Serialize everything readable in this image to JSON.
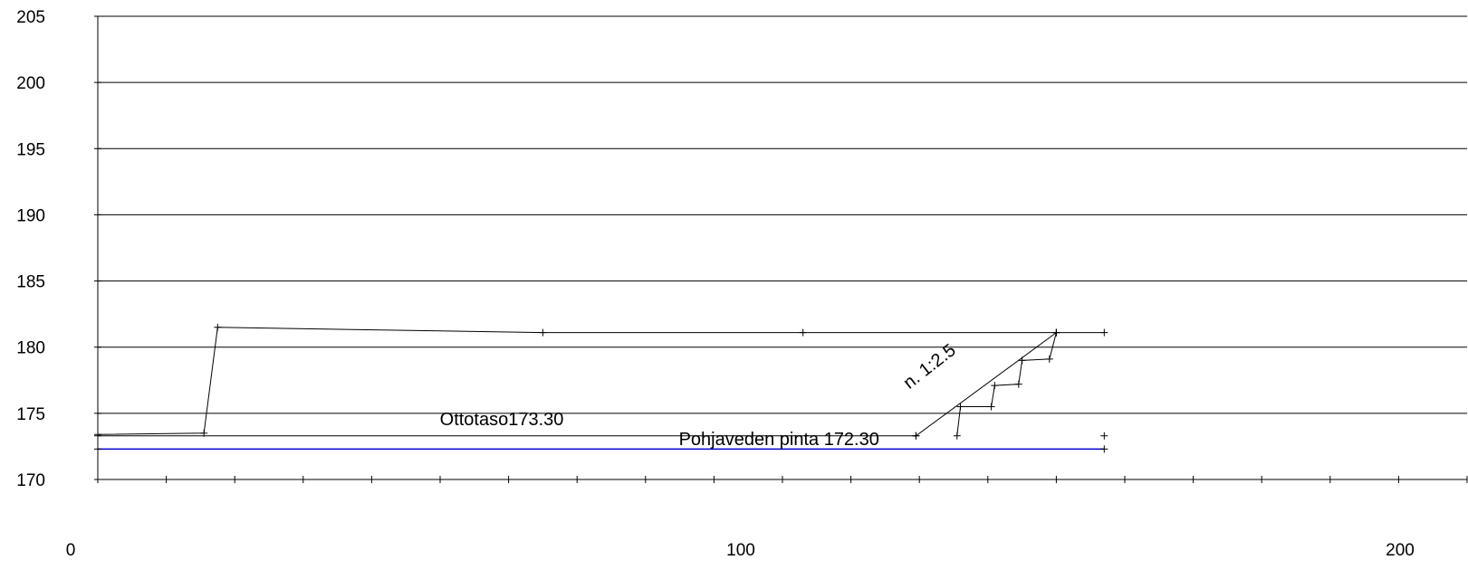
{
  "chart_data": {
    "type": "line",
    "title": "",
    "xlabel": "",
    "ylabel": "",
    "xlim": [
      0,
      200
    ],
    "ylim": [
      170,
      205
    ],
    "x_tick_labels": [
      "0",
      "100",
      "200"
    ],
    "x_minor_tick_step": 10,
    "y_ticks": [
      170,
      175,
      180,
      185,
      190,
      195,
      200,
      205
    ],
    "y_tick_labels": [
      "170",
      "175",
      "180",
      "185",
      "190",
      "195",
      "200",
      "205"
    ],
    "grid": "horizontal",
    "colors": {
      "axis": "#000000",
      "profile": "#000000",
      "groundwater": "#0000cc"
    },
    "series": [
      {
        "key": "ground_profile",
        "points": [
          [
            0,
            173.4
          ],
          [
            15.5,
            173.5
          ],
          [
            17.5,
            181.5
          ],
          [
            65,
            181.1
          ],
          [
            103,
            181.1
          ],
          [
            140,
            181.1
          ],
          [
            147,
            181.1
          ]
        ]
      },
      {
        "key": "extraction_level",
        "points": [
          [
            0,
            173.3
          ],
          [
            119.5,
            173.3
          ]
        ]
      },
      {
        "key": "excavation_slope",
        "points": [
          [
            119.5,
            173.3
          ],
          [
            140,
            181.1
          ]
        ]
      },
      {
        "key": "bench_steps",
        "points": [
          [
            125.5,
            173.3
          ],
          [
            126,
            175.5
          ],
          [
            130.5,
            175.5
          ],
          [
            131,
            177.1
          ],
          [
            134.5,
            177.2
          ],
          [
            135,
            179.0
          ],
          [
            139,
            179.1
          ],
          [
            140,
            181.1
          ]
        ]
      },
      {
        "key": "groundwater",
        "points": [
          [
            0,
            172.3
          ],
          [
            147,
            172.3
          ]
        ]
      },
      {
        "key": "marker",
        "points": [
          [
            147,
            173.3
          ]
        ]
      }
    ],
    "annotations": [
      {
        "key": "ottotaso",
        "text": "Ottotaso173.30",
        "x": 59,
        "y": 174.1,
        "rotate": 0
      },
      {
        "key": "pohjavesi",
        "text": "Pohjaveden pinta 172.30",
        "x": 99.5,
        "y": 172.6,
        "rotate": 0
      },
      {
        "key": "slope",
        "text": "n. 1:2.5",
        "x": 122,
        "y": 178.2,
        "rotate": -38
      }
    ]
  }
}
